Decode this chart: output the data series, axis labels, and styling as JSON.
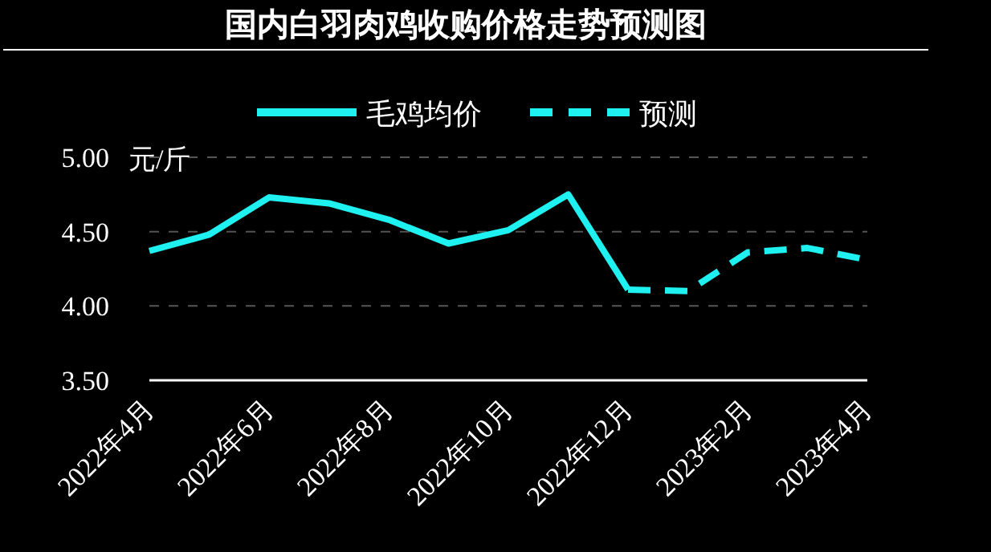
{
  "chart_data": {
    "type": "line",
    "title": "国内白羽肉鸡收购价格走势预测图",
    "ylabel": "元/斤",
    "categories": [
      "2022年4月",
      null,
      "2022年6月",
      null,
      "2022年8月",
      null,
      "2022年10月",
      null,
      "2022年12月",
      null,
      "2023年2月",
      null,
      "2023年4月"
    ],
    "series": [
      {
        "name": "毛鸡均价",
        "color": "#1ff0f0",
        "line_style": "solid",
        "values": [
          4.37,
          4.48,
          4.73,
          4.69,
          4.58,
          4.42,
          4.51,
          4.75,
          4.11,
          null,
          null,
          null,
          null
        ]
      },
      {
        "name": "预测",
        "color": "#1ff0f0",
        "line_style": "dashed",
        "values": [
          null,
          null,
          null,
          null,
          null,
          null,
          null,
          null,
          4.11,
          4.1,
          4.36,
          4.39,
          4.31
        ]
      }
    ],
    "ylim": [
      3.5,
      5.0
    ],
    "yticks": [
      {
        "value": 3.5,
        "label": "3.50"
      },
      {
        "value": 4.0,
        "label": "4.00"
      },
      {
        "value": 4.5,
        "label": "4.50"
      },
      {
        "value": 5.0,
        "label": "5.00"
      }
    ],
    "grid": "y",
    "legend": "top",
    "marker": "none"
  }
}
